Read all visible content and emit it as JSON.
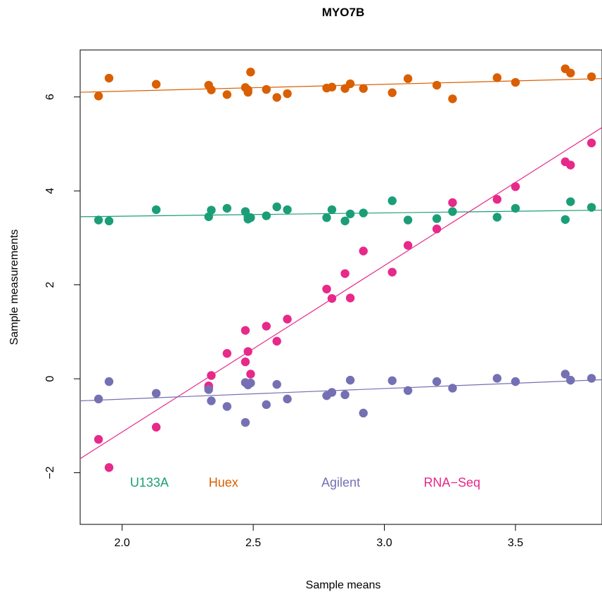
{
  "chart_data": {
    "type": "scatter",
    "title": "MYO7B",
    "xlabel": "Sample means",
    "ylabel": "Sample measurements",
    "xlim": [
      1.84,
      3.83
    ],
    "ylim": [
      -3.1,
      7.0
    ],
    "x_ticks": [
      2.0,
      2.5,
      3.0,
      3.5
    ],
    "x_tick_labels": [
      "2.0",
      "2.5",
      "3.0",
      "3.5"
    ],
    "y_ticks": [
      -2,
      0,
      2,
      4,
      6
    ],
    "y_tick_labels": [
      "−2",
      "0",
      "2",
      "4",
      "6"
    ],
    "grid": false,
    "legend_position": "bottom-inside",
    "x": [
      1.91,
      1.95,
      2.13,
      2.33,
      2.34,
      2.4,
      2.47,
      2.48,
      2.49,
      2.55,
      2.59,
      2.63,
      2.78,
      2.8,
      2.85,
      2.87,
      2.92,
      3.03,
      3.09,
      3.2,
      3.26,
      3.43,
      3.5,
      3.69,
      3.71,
      3.79
    ],
    "series": [
      {
        "name": "Huex",
        "color": "#D95F02",
        "y": [
          6.02,
          6.4,
          6.27,
          6.25,
          6.15,
          6.05,
          6.2,
          6.1,
          6.53,
          6.16,
          5.99,
          6.07,
          6.19,
          6.21,
          6.18,
          6.28,
          6.18,
          6.09,
          6.39,
          6.25,
          5.96,
          6.41,
          6.31,
          6.6,
          6.51,
          6.43
        ],
        "extra_points": [
          [
            2.48,
            6.15
          ]
        ],
        "fit": [
          6.1,
          6.39
        ]
      },
      {
        "name": "U133A",
        "color": "#1B9E77",
        "y": [
          3.38,
          3.36,
          3.6,
          3.45,
          3.59,
          3.63,
          3.56,
          3.4,
          3.43,
          3.47,
          3.66,
          3.6,
          3.43,
          3.6,
          3.36,
          3.51,
          3.53,
          3.79,
          3.38,
          3.41,
          3.56,
          3.44,
          3.63,
          3.39,
          3.77,
          3.65
        ],
        "extra_points": [
          [
            2.48,
            3.44
          ]
        ],
        "fit": [
          3.45,
          3.59
        ]
      },
      {
        "name": "RNA−Seq",
        "color": "#E7298A",
        "y": [
          -1.29,
          -1.89,
          -1.03,
          -0.19,
          0.07,
          0.54,
          1.03,
          0.58,
          0.1,
          1.12,
          0.8,
          1.27,
          1.91,
          1.71,
          2.24,
          1.72,
          2.72,
          2.27,
          2.84,
          3.19,
          3.75,
          3.82,
          4.09,
          4.62,
          4.55,
          5.02
        ],
        "extra_points": [
          [
            2.47,
            0.36
          ],
          [
            2.33,
            -0.15
          ]
        ],
        "fit": [
          -1.7,
          5.35
        ]
      },
      {
        "name": "Agilent",
        "color": "#7570B3",
        "y": [
          -0.43,
          -0.06,
          -0.31,
          -0.23,
          -0.47,
          -0.59,
          -0.93,
          -0.13,
          -0.09,
          -0.55,
          -0.12,
          -0.43,
          -0.36,
          -0.29,
          -0.34,
          -0.03,
          -0.73,
          -0.04,
          -0.25,
          -0.06,
          -0.2,
          0.01,
          -0.06,
          0.1,
          -0.03,
          0.01
        ],
        "extra_points": [
          [
            2.47,
            -0.08
          ]
        ],
        "fit": [
          -0.47,
          -0.02
        ]
      }
    ],
    "legend": [
      {
        "label": "U133A",
        "color": "#1B9E77",
        "x": 2.03
      },
      {
        "label": "Huex",
        "color": "#D95F02",
        "x": 2.33
      },
      {
        "label": "Agilent",
        "color": "#7570B3",
        "x": 2.76
      },
      {
        "label": "RNA−Seq",
        "color": "#E7298A",
        "x": 3.15
      }
    ],
    "legend_y": -2.3
  }
}
